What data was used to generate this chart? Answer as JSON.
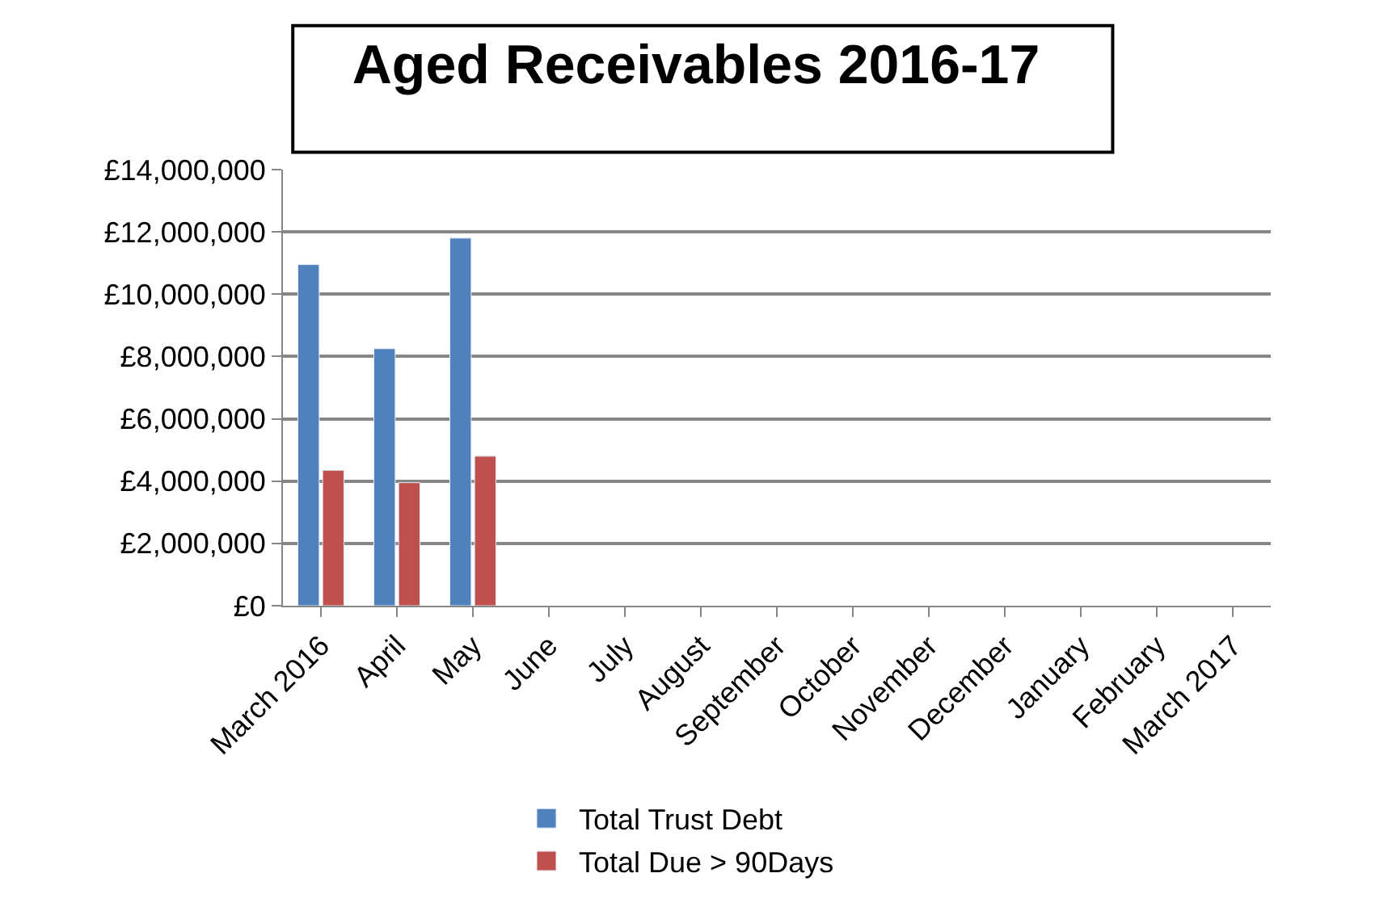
{
  "chart_data": {
    "type": "bar",
    "title": "Aged Receivables 2016-17",
    "categories": [
      "March 2016",
      "April",
      "May",
      "June",
      "July",
      "August",
      "September",
      "October",
      "November",
      "December",
      "January",
      "February",
      "March 2017"
    ],
    "series": [
      {
        "name": "Total Trust Debt",
        "color": "#4f81bd",
        "values": [
          10950000,
          8250000,
          11800000,
          null,
          null,
          null,
          null,
          null,
          null,
          null,
          null,
          null,
          null
        ]
      },
      {
        "name": "Total Due > 90Days",
        "color": "#c0504d",
        "values": [
          4350000,
          3950000,
          4800000,
          null,
          null,
          null,
          null,
          null,
          null,
          null,
          null,
          null,
          null
        ]
      }
    ],
    "ylim": [
      0,
      14000000
    ],
    "yticks": [
      {
        "value": 0,
        "label": "£0"
      },
      {
        "value": 2000000,
        "label": "£2,000,000"
      },
      {
        "value": 4000000,
        "label": "£4,000,000"
      },
      {
        "value": 6000000,
        "label": "£6,000,000"
      },
      {
        "value": 8000000,
        "label": "£8,000,000"
      },
      {
        "value": 10000000,
        "label": "£10,000,000"
      },
      {
        "value": 12000000,
        "label": "£12,000,000"
      },
      {
        "value": 14000000,
        "label": "£14,000,000"
      }
    ],
    "grid": "y",
    "legend": "bottom"
  }
}
